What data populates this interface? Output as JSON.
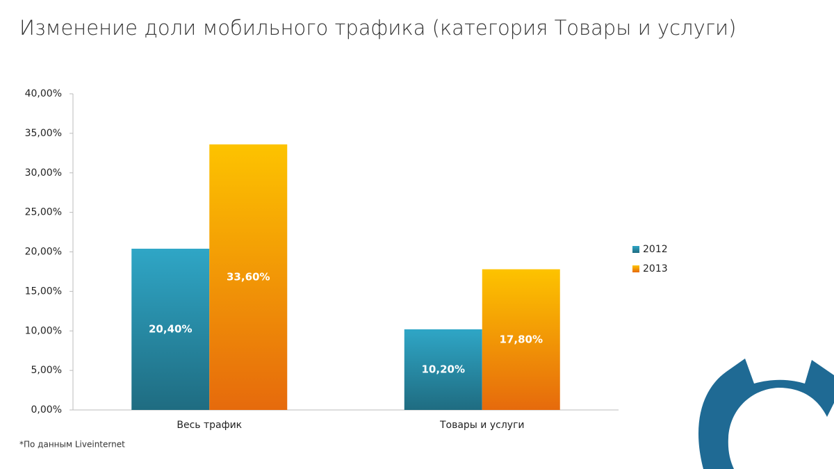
{
  "chart_data": {
    "type": "bar",
    "title": "Изменение доли мобильного трафика (категория Товары и услуги)",
    "footnote": "*По данным Liveinternet",
    "categories": [
      "Весь трафик",
      "Товары и услуги"
    ],
    "series": [
      {
        "name": "2012",
        "color": "#2fa6c6",
        "values": [
          20.4,
          10.2
        ],
        "value_labels": [
          "20,40%",
          "10,20%"
        ]
      },
      {
        "name": "2013",
        "color": "#fdc300",
        "values": [
          33.6,
          17.8
        ],
        "value_labels": [
          "33,60%",
          "17,80%"
        ]
      }
    ],
    "ylim": [
      0,
      40
    ],
    "yticks": [
      {
        "value": 0,
        "label": "0,00%"
      },
      {
        "value": 5,
        "label": "5,00%"
      },
      {
        "value": 10,
        "label": "10,00%"
      },
      {
        "value": 15,
        "label": "15,00%"
      },
      {
        "value": 20,
        "label": "20,00%"
      },
      {
        "value": 25,
        "label": "25,00%"
      },
      {
        "value": 30,
        "label": "30,00%"
      },
      {
        "value": 35,
        "label": "35,00%"
      },
      {
        "value": 40,
        "label": "40,00%"
      }
    ],
    "grid": false,
    "legend": "right"
  }
}
